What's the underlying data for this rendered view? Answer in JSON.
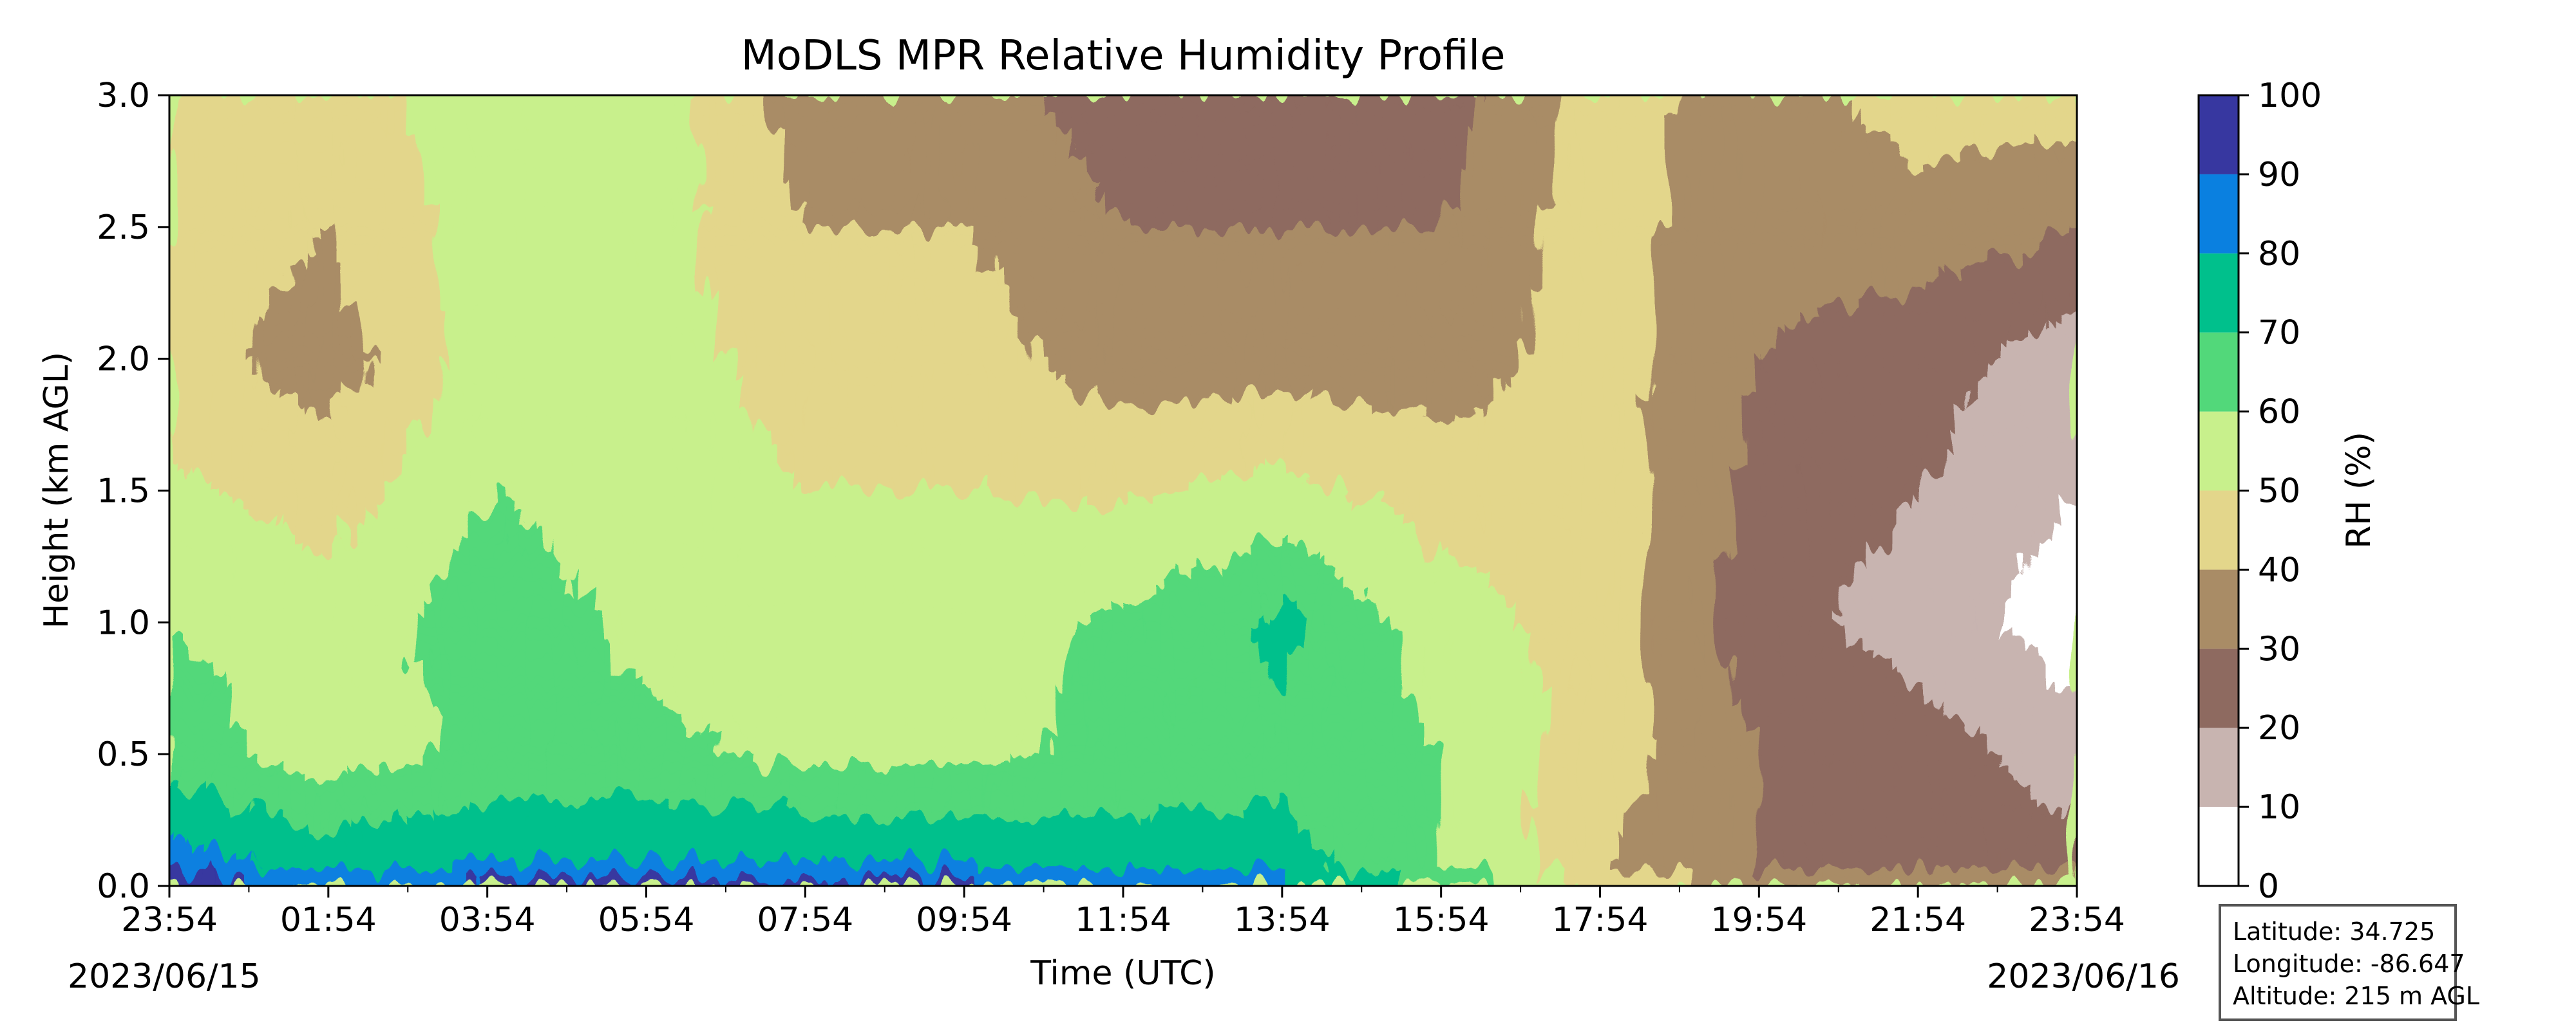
{
  "chart_data": {
    "type": "heatmap",
    "title": "MoDLS MPR Relative Humidity Profile",
    "xlabel": "Time (UTC)",
    "ylabel": "Height (km AGL)",
    "x_tick_labels": [
      "23:54",
      "01:54",
      "03:54",
      "05:54",
      "07:54",
      "09:54",
      "11:54",
      "13:54",
      "15:54",
      "17:54",
      "19:54",
      "21:54",
      "23:54"
    ],
    "x_start_date": "2023/06/15",
    "x_end_date": "2023/06/16",
    "ylim": [
      0.0,
      3.0
    ],
    "y_ticks": [
      "0.0",
      "0.5",
      "1.0",
      "1.5",
      "2.0",
      "2.5",
      "3.0"
    ],
    "colorbar": {
      "label": "RH (%)",
      "ticks": [
        "0",
        "10",
        "20",
        "30",
        "40",
        "50",
        "60",
        "70",
        "80",
        "90",
        "100"
      ],
      "levels": [
        0,
        10,
        20,
        30,
        40,
        50,
        60,
        70,
        80,
        90,
        100
      ],
      "colors": [
        "#ffffff",
        "#c8b4b0",
        "#8e6a60",
        "#a98c66",
        "#e3d68b",
        "#c8f08c",
        "#52d87a",
        "#00c08c",
        "#0a80e0",
        "#3737a0"
      ]
    },
    "description_profile": [
      {
        "time": "23:54",
        "surface_rh": 90,
        "rh_0.5km": 65,
        "rh_1km": 60,
        "rh_2km": 45,
        "rh_3km": 45
      },
      {
        "time": "01:54",
        "surface_rh": 80,
        "rh_0.5km": 55,
        "rh_1km": 55,
        "rh_2km": 35,
        "rh_3km": 45
      },
      {
        "time": "03:54",
        "surface_rh": 85,
        "rh_0.5km": 62,
        "rh_1km": 65,
        "rh_2km": 55,
        "rh_3km": 55
      },
      {
        "time": "05:54",
        "surface_rh": 85,
        "rh_0.5km": 62,
        "rh_1km": 58,
        "rh_2km": 55,
        "rh_3km": 55
      },
      {
        "time": "07:54",
        "surface_rh": 85,
        "rh_0.5km": 58,
        "rh_1km": 55,
        "rh_2km": 45,
        "rh_3km": 35
      },
      {
        "time": "09:54",
        "surface_rh": 85,
        "rh_0.5km": 58,
        "rh_1km": 55,
        "rh_2km": 45,
        "rh_3km": 35
      },
      {
        "time": "11:54",
        "surface_rh": 80,
        "rh_0.5km": 62,
        "rh_1km": 62,
        "rh_2km": 35,
        "rh_3km": 25
      },
      {
        "time": "13:54",
        "surface_rh": 75,
        "rh_0.5km": 68,
        "rh_1km": 72,
        "rh_2km": 35,
        "rh_3km": 25
      },
      {
        "time": "15:54",
        "surface_rh": 60,
        "rh_0.5km": 60,
        "rh_1km": 55,
        "rh_2km": 35,
        "rh_3km": 25
      },
      {
        "time": "17:54",
        "surface_rh": 40,
        "rh_0.5km": 45,
        "rh_1km": 45,
        "rh_2km": 45,
        "rh_3km": 45
      },
      {
        "time": "19:54",
        "surface_rh": 30,
        "rh_0.5km": 30,
        "rh_1km": 25,
        "rh_2km": 30,
        "rh_3km": 35
      },
      {
        "time": "21:54",
        "surface_rh": 25,
        "rh_0.5km": 25,
        "rh_1km": 15,
        "rh_2km": 25,
        "rh_3km": 45
      },
      {
        "time": "23:54",
        "surface_rh": 25,
        "rh_0.5km": 15,
        "rh_1km": 5,
        "rh_2km": 15,
        "rh_3km": 45
      }
    ]
  },
  "info": {
    "latitude": "Latitude: 34.725",
    "longitude": "Longitude: -86.647",
    "altitude": "Altitude: 215 m AGL"
  }
}
